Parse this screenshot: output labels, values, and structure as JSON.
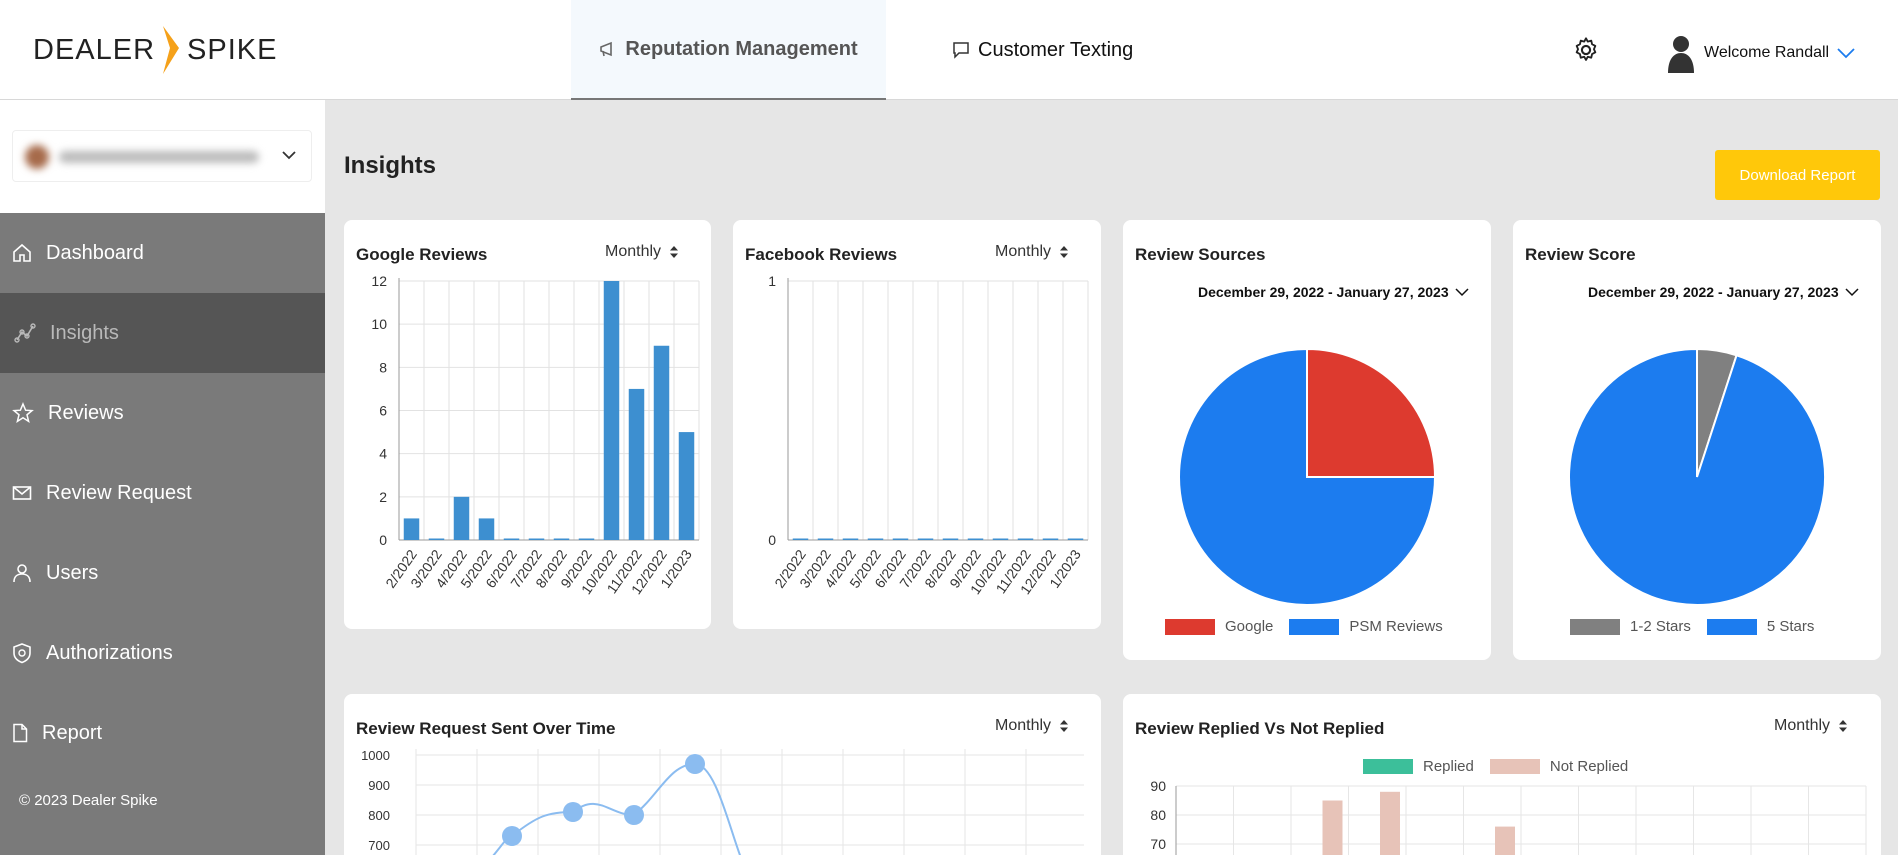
{
  "header": {
    "logo_left": "DEALER",
    "logo_right": "SPIKE",
    "tabs": [
      {
        "label": "Reputation Management",
        "icon": "megaphone-icon",
        "active": true
      },
      {
        "label": "Customer Texting",
        "icon": "chat-icon",
        "active": false
      }
    ],
    "settings_icon": "gear-icon",
    "user_greeting": "Welcome Randall"
  },
  "sidebar": {
    "items": [
      {
        "label": "Dashboard",
        "icon": "home-icon"
      },
      {
        "label": "Insights",
        "icon": "analytics-icon",
        "active": true
      },
      {
        "label": "Reviews",
        "icon": "star-icon"
      },
      {
        "label": "Review Request",
        "icon": "mail-icon"
      },
      {
        "label": "Users",
        "icon": "user-icon"
      },
      {
        "label": "Authorizations",
        "icon": "shield-icon"
      },
      {
        "label": "Report",
        "icon": "file-icon"
      }
    ],
    "copyright": "© 2023 Dealer Spike"
  },
  "main": {
    "title": "Insights",
    "download_label": "Download Report"
  },
  "cards": {
    "google": {
      "title": "Google Reviews",
      "period": "Monthly"
    },
    "facebook": {
      "title": "Facebook Reviews",
      "period": "Monthly"
    },
    "sources": {
      "title": "Review Sources",
      "date_range": "December 29, 2022 - January 27, 2023",
      "legend": [
        "Google",
        "PSM Reviews"
      ]
    },
    "score": {
      "title": "Review Score",
      "date_range": "December 29, 2022 - January 27, 2023",
      "legend": [
        "1-2 Stars",
        "5 Stars"
      ]
    },
    "requests": {
      "title": "Review Request Sent Over Time",
      "period": "Monthly"
    },
    "replied": {
      "title": "Review Replied Vs Not Replied",
      "period": "Monthly",
      "legend": [
        "Replied",
        "Not Replied"
      ]
    }
  },
  "colors": {
    "brand_orange": "#f5a11a",
    "bar_blue": "#3d8fd0",
    "pie_blue": "#1c7cef",
    "pie_red": "#dd3a2f",
    "pie_gray": "#808080",
    "download_yellow": "#ffc80a",
    "replied_green": "#3cbf9a",
    "not_replied_pink": "#e7c3b8"
  },
  "chart_data": [
    {
      "type": "bar",
      "title": "Google Reviews",
      "categories": [
        "2/2022",
        "3/2022",
        "4/2022",
        "5/2022",
        "6/2022",
        "7/2022",
        "8/2022",
        "9/2022",
        "10/2022",
        "11/2022",
        "12/2022",
        "1/2023"
      ],
      "values": [
        1,
        0,
        2,
        1,
        0,
        0,
        0,
        0,
        12,
        7,
        9,
        5
      ],
      "ylim": [
        0,
        12
      ],
      "yticks": [
        0,
        2,
        4,
        6,
        8,
        10,
        12
      ],
      "grid": true
    },
    {
      "type": "bar",
      "title": "Facebook Reviews",
      "categories": [
        "2/2022",
        "3/2022",
        "4/2022",
        "5/2022",
        "6/2022",
        "7/2022",
        "8/2022",
        "9/2022",
        "10/2022",
        "11/2022",
        "12/2022",
        "1/2023"
      ],
      "values": [
        0,
        0,
        0,
        0,
        0,
        0,
        0,
        0,
        0,
        0,
        0,
        0
      ],
      "ylim": [
        0,
        1
      ],
      "yticks": [
        0,
        1
      ],
      "grid": true
    },
    {
      "type": "pie",
      "title": "Review Sources",
      "labels": [
        "Google",
        "PSM Reviews"
      ],
      "values": [
        25,
        75
      ]
    },
    {
      "type": "pie",
      "title": "Review Score",
      "labels": [
        "1-2 Stars",
        "5 Stars"
      ],
      "values": [
        5,
        95
      ]
    },
    {
      "type": "line",
      "title": "Review Request Sent Over Time",
      "x_index": [
        2,
        3,
        4,
        5
      ],
      "values": [
        730,
        810,
        800,
        970
      ],
      "yticks": [
        700,
        800,
        900,
        1000
      ],
      "grid": true
    },
    {
      "type": "bar",
      "title": "Review Replied Vs Not Replied",
      "series": [
        {
          "name": "Not Replied",
          "x_index": [
            3,
            4,
            6
          ],
          "values": [
            85,
            88,
            76
          ]
        }
      ],
      "yticks": [
        70,
        80,
        90
      ],
      "grid": true
    }
  ]
}
